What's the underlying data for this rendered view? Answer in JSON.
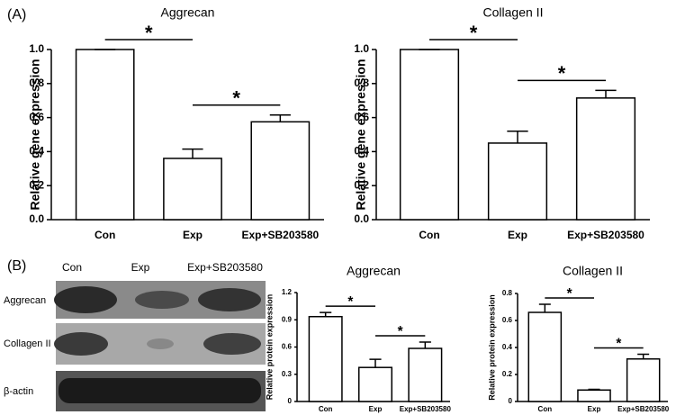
{
  "figure": {
    "panel_a": "(A)",
    "panel_b": "(B)",
    "blot": {
      "columns": [
        "Con",
        "Exp",
        "Exp+SB203580"
      ],
      "rows": [
        "Aggrecan",
        "Collagen II",
        "β-actin"
      ]
    }
  },
  "chart_data": [
    {
      "type": "bar",
      "title": "Aggrecan",
      "y_label": "Relative gene expression",
      "categories": [
        "Con",
        "Exp",
        "Exp+SB203580"
      ],
      "values": [
        1.0,
        0.36,
        0.575
      ],
      "errors": [
        0,
        0.055,
        0.04
      ],
      "color": "#ffffff",
      "ylim": [
        0,
        1
      ],
      "yticks": [
        {
          "value": 0,
          "label": "0.0"
        },
        0.2,
        0.4,
        0.6,
        0.8,
        {
          "value": 1,
          "label": "1.0"
        }
      ],
      "significance": [
        {
          "between": [
            "Con",
            "Exp"
          ],
          "label": "*"
        },
        {
          "between": [
            "Exp",
            "Exp+SB203580"
          ],
          "label": "*"
        }
      ]
    },
    {
      "type": "bar",
      "title": "Collagen II",
      "y_label": "Relative gene expression",
      "categories": [
        "Con",
        "Exp",
        "Exp+SB203580"
      ],
      "values": [
        1.0,
        0.45,
        0.715
      ],
      "errors": [
        0,
        0.07,
        0.045
      ],
      "color": "#ffffff",
      "ylim": [
        0,
        1
      ],
      "yticks": [
        {
          "value": 0,
          "label": "0.0"
        },
        0.2,
        0.4,
        0.6,
        0.8,
        {
          "value": 1,
          "label": "1.0"
        }
      ],
      "significance": [
        {
          "between": [
            "Con",
            "Exp"
          ],
          "label": "*"
        },
        {
          "between": [
            "Exp",
            "Exp+SB203580"
          ],
          "label": "*"
        }
      ]
    },
    {
      "type": "bar",
      "title": "Aggrecan",
      "y_label": "Relative protein expression",
      "categories": [
        "Con",
        "Exp",
        "Exp+SB203580"
      ],
      "values": [
        0.935,
        0.375,
        0.585
      ],
      "errors": [
        0.045,
        0.09,
        0.07
      ],
      "color": "#ffffff",
      "ylim": [
        0,
        1.2
      ],
      "yticks": [
        0,
        0.3,
        0.6,
        0.9,
        1.2
      ],
      "significance": [
        {
          "between": [
            "Con",
            "Exp"
          ],
          "label": "*"
        },
        {
          "between": [
            "Exp",
            "Exp+SB203580"
          ],
          "label": "*"
        }
      ]
    },
    {
      "type": "bar",
      "title": "Collagen II",
      "y_label": "Relative protein expression",
      "categories": [
        "Con",
        "Exp",
        "Exp+SB203580"
      ],
      "values": [
        0.66,
        0.085,
        0.315
      ],
      "errors": [
        0.06,
        0.005,
        0.035
      ],
      "color": "#ffffff",
      "ylim": [
        0,
        0.8
      ],
      "yticks": [
        0,
        0.2,
        0.4,
        0.6,
        0.8
      ],
      "significance": [
        {
          "between": [
            "Con",
            "Exp"
          ],
          "label": "*"
        },
        {
          "between": [
            "Exp",
            "Exp+SB203580"
          ],
          "label": "*"
        }
      ]
    }
  ]
}
